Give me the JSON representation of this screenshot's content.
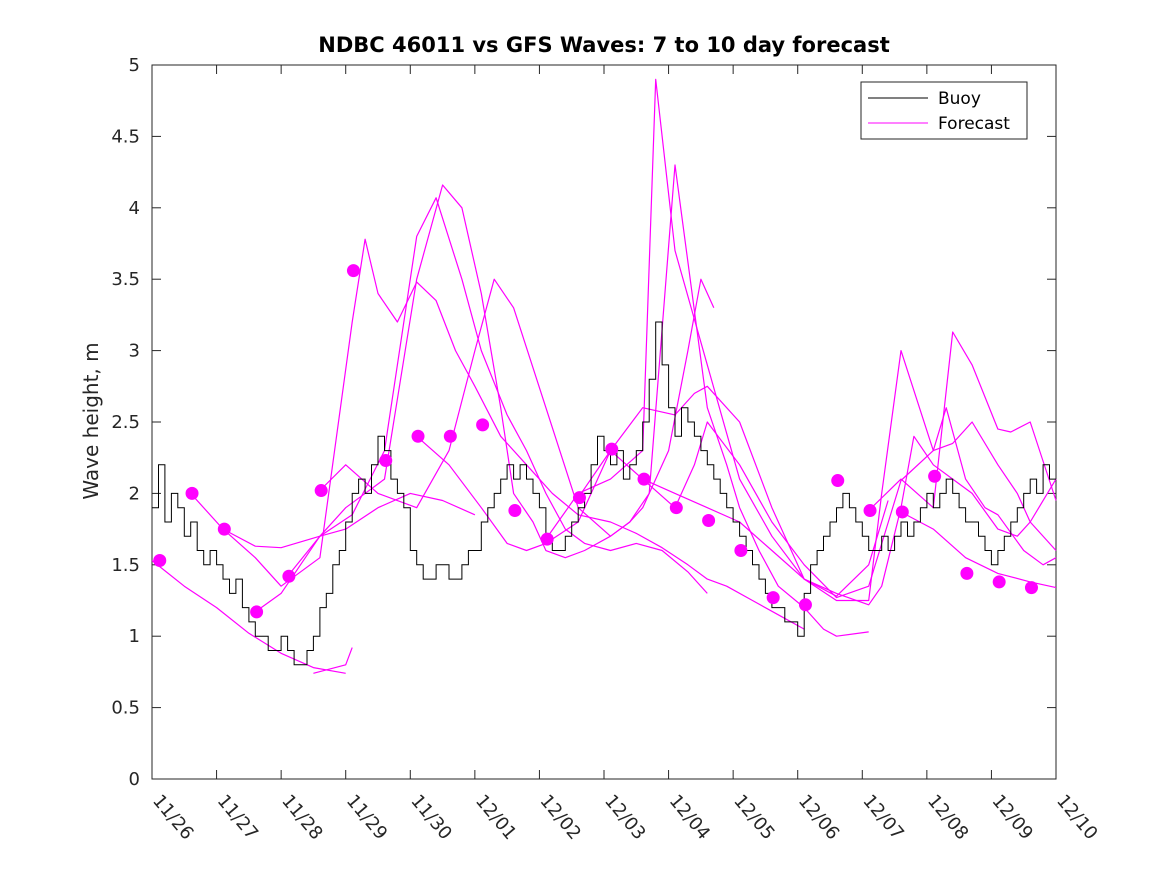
{
  "chart_data": {
    "type": "line",
    "title": "NDBC 46011 vs GFS Waves: 7 to 10 day forecast",
    "xlabel": "",
    "ylabel": "Wave height, m",
    "xlim": [
      0,
      14
    ],
    "ylim": [
      0,
      5
    ],
    "x_tick_labels": [
      "11/26",
      "11/27",
      "11/28",
      "11/29",
      "11/30",
      "12/01",
      "12/02",
      "12/03",
      "12/04",
      "12/05",
      "12/06",
      "12/07",
      "12/08",
      "12/09",
      "12/10"
    ],
    "y_tick_labels": [
      "0",
      "0.5",
      "1",
      "1.5",
      "2",
      "2.5",
      "3",
      "3.5",
      "4",
      "4.5",
      "5"
    ],
    "grid": false,
    "legend": {
      "position": "top-right",
      "entries": [
        "Buoy",
        "Forecast"
      ]
    },
    "colors": {
      "buoy": "#000000",
      "forecast": "#ff00ff",
      "axis": "#262626"
    },
    "buoy": {
      "name": "Buoy",
      "x": [
        0,
        0.1,
        0.2,
        0.3,
        0.4,
        0.5,
        0.6,
        0.7,
        0.8,
        0.9,
        1.0,
        1.1,
        1.2,
        1.3,
        1.4,
        1.5,
        1.6,
        1.7,
        1.8,
        1.9,
        2.0,
        2.1,
        2.2,
        2.3,
        2.4,
        2.5,
        2.6,
        2.7,
        2.8,
        2.9,
        3.0,
        3.1,
        3.2,
        3.3,
        3.4,
        3.5,
        3.6,
        3.7,
        3.8,
        3.9,
        4.0,
        4.1,
        4.2,
        4.3,
        4.4,
        4.5,
        4.6,
        4.7,
        4.8,
        4.9,
        5.0,
        5.1,
        5.2,
        5.3,
        5.4,
        5.5,
        5.6,
        5.7,
        5.8,
        5.9,
        6.0,
        6.1,
        6.2,
        6.3,
        6.4,
        6.5,
        6.6,
        6.7,
        6.8,
        6.9,
        7.0,
        7.1,
        7.2,
        7.3,
        7.4,
        7.5,
        7.6,
        7.7,
        7.8,
        7.9,
        8.0,
        8.1,
        8.2,
        8.3,
        8.4,
        8.5,
        8.6,
        8.7,
        8.8,
        8.9,
        9.0,
        9.1,
        9.2,
        9.3,
        9.4,
        9.5,
        9.6,
        9.7,
        9.8,
        9.9,
        10.0,
        10.1,
        10.2,
        10.3,
        10.4,
        10.5,
        10.6,
        10.7,
        10.8,
        10.9,
        11.0,
        11.1,
        11.2,
        11.3,
        11.4,
        11.5,
        11.6,
        11.7,
        11.8,
        11.9,
        12.0,
        12.1,
        12.2,
        12.3,
        12.4,
        12.5,
        12.6,
        12.7,
        12.8,
        12.9,
        13.0,
        13.1,
        13.2,
        13.3,
        13.4,
        13.5,
        13.6,
        13.7,
        13.8,
        13.9,
        14.0
      ],
      "values": [
        1.9,
        2.2,
        1.8,
        2.0,
        1.9,
        1.7,
        1.8,
        1.6,
        1.5,
        1.6,
        1.5,
        1.4,
        1.3,
        1.4,
        1.2,
        1.1,
        1.0,
        1.0,
        0.9,
        0.9,
        1.0,
        0.9,
        0.8,
        0.8,
        0.9,
        1.0,
        1.2,
        1.3,
        1.5,
        1.6,
        1.8,
        2.0,
        2.1,
        2.0,
        2.2,
        2.4,
        2.3,
        2.1,
        2.0,
        1.9,
        1.6,
        1.5,
        1.4,
        1.4,
        1.5,
        1.5,
        1.4,
        1.4,
        1.5,
        1.6,
        1.6,
        1.8,
        1.9,
        2.0,
        2.1,
        2.2,
        2.1,
        2.2,
        2.1,
        2.0,
        1.9,
        1.7,
        1.6,
        1.6,
        1.7,
        1.8,
        1.9,
        2.0,
        2.2,
        2.4,
        2.3,
        2.2,
        2.3,
        2.1,
        2.2,
        2.3,
        2.5,
        2.8,
        3.2,
        2.9,
        2.6,
        2.4,
        2.6,
        2.5,
        2.4,
        2.3,
        2.2,
        2.1,
        2.0,
        1.9,
        1.8,
        1.7,
        1.6,
        1.5,
        1.4,
        1.3,
        1.2,
        1.2,
        1.1,
        1.1,
        1.0,
        1.3,
        1.5,
        1.6,
        1.7,
        1.8,
        1.9,
        2.0,
        1.9,
        1.8,
        1.7,
        1.6,
        1.6,
        1.7,
        1.6,
        1.7,
        1.8,
        1.7,
        1.8,
        1.9,
        2.0,
        1.9,
        2.0,
        2.1,
        2.0,
        1.9,
        1.8,
        1.8,
        1.7,
        1.6,
        1.5,
        1.6,
        1.7,
        1.8,
        1.9,
        2.0,
        2.1,
        2.0,
        2.2,
        2.1,
        2.1
      ]
    },
    "forecasts": [
      {
        "x": [
          0,
          0.5,
          1,
          1.5,
          2,
          2.5,
          3
        ],
        "values": [
          1.53,
          1.35,
          1.2,
          1.02,
          0.88,
          0.78,
          0.74
        ]
      },
      {
        "x": [
          2.5,
          3,
          3.1
        ],
        "values": [
          0.74,
          0.8,
          0.92
        ]
      },
      {
        "x": [
          0.6,
          1.1,
          1.6,
          2,
          2.6,
          3,
          3.5,
          4,
          4.5,
          5
        ],
        "values": [
          2.0,
          1.75,
          1.63,
          1.62,
          1.7,
          1.75,
          1.9,
          2.0,
          1.95,
          1.85
        ]
      },
      {
        "x": [
          1.1,
          1.6,
          2,
          2.6,
          3.1,
          3.3,
          3.5,
          3.8,
          4.1,
          4.4,
          4.7,
          5,
          5.4,
          5.8,
          6.2,
          6.6,
          7.1,
          7.5,
          7.9,
          8.3,
          8.6,
          8.9,
          9.3,
          9.7,
          10.1
        ],
        "values": [
          1.75,
          1.55,
          1.35,
          1.55,
          3.2,
          3.78,
          3.4,
          3.2,
          3.48,
          3.35,
          3.0,
          2.75,
          2.4,
          2.2,
          2.0,
          1.85,
          1.8,
          1.72,
          1.62,
          1.5,
          1.4,
          1.35,
          1.25,
          1.15,
          1.05
        ]
      },
      {
        "x": [
          1.6,
          2,
          2.6,
          3.1,
          3.6,
          4.1,
          4.4,
          4.8,
          5.1,
          5.5,
          5.8,
          6.1,
          6.4,
          6.7,
          7.1,
          7.5,
          7.9,
          8.3,
          8.6
        ],
        "values": [
          1.17,
          1.3,
          1.7,
          1.85,
          2.3,
          3.8,
          4.07,
          3.5,
          3.0,
          2.55,
          2.3,
          2.0,
          1.75,
          1.65,
          1.6,
          1.65,
          1.6,
          1.45,
          1.3
        ]
      },
      {
        "x": [
          2.1,
          2.6,
          3,
          3.6,
          4.1,
          4.5,
          4.8,
          5.1,
          5.4,
          5.6,
          5.9,
          6.1,
          6.4,
          6.7,
          7.1,
          7.4,
          7.6,
          8,
          8.3,
          8.5,
          8.7
        ],
        "values": [
          1.42,
          1.7,
          1.9,
          2.1,
          3.5,
          4.16,
          4.0,
          3.4,
          2.6,
          2.0,
          1.8,
          1.6,
          1.55,
          1.6,
          1.7,
          1.8,
          1.9,
          2.3,
          3.0,
          3.5,
          3.3
        ]
      },
      {
        "x": [
          2.6,
          3,
          3.5,
          4.1,
          4.6,
          5,
          5.3,
          5.6,
          6.1,
          6.6,
          7.1,
          7.4,
          7.7,
          8.1,
          8.6,
          8.9,
          9.1,
          9.4,
          9.7,
          10.1,
          10.4,
          10.6,
          11.1
        ],
        "values": [
          2.02,
          2.2,
          2.0,
          1.9,
          2.3,
          3.0,
          3.5,
          3.3,
          2.6,
          1.9,
          1.7,
          1.8,
          2.0,
          4.3,
          2.6,
          2.2,
          1.9,
          1.6,
          1.35,
          1.2,
          1.05,
          1.0,
          1.03
        ]
      },
      {
        "x": [
          4.1,
          4.6,
          5.1,
          5.5,
          5.8,
          6.1,
          6.6,
          7.1,
          7.6,
          8.1,
          8.4,
          8.6,
          9.1,
          9.6,
          10.1,
          10.6,
          11.1,
          11.4
        ],
        "values": [
          2.4,
          2.2,
          1.9,
          1.65,
          1.6,
          1.65,
          1.8,
          2.3,
          2.6,
          2.55,
          2.7,
          2.75,
          2.5,
          1.9,
          1.4,
          1.28,
          1.5,
          1.95
        ]
      },
      {
        "x": [
          6.1,
          6.6,
          7.1,
          7.6,
          7.8,
          8.1,
          8.6,
          9.1,
          9.6,
          10.1,
          10.6,
          11.1,
          11.3,
          11.6,
          12.1,
          12.4,
          12.7,
          13.1,
          13.4,
          13.6,
          14
        ],
        "values": [
          1.68,
          2.0,
          2.1,
          2.3,
          4.9,
          3.7,
          2.9,
          2.1,
          1.7,
          1.4,
          1.25,
          1.25,
          2.0,
          3.0,
          2.3,
          2.35,
          2.5,
          2.2,
          2.0,
          1.8,
          1.6
        ]
      },
      {
        "x": [
          6.6,
          7.1,
          7.6,
          8.1,
          8.6,
          9.1,
          9.6,
          10.1,
          10.6,
          11.1,
          11.3,
          11.6,
          11.8,
          12.1,
          12.4,
          12.7,
          13.1,
          13.4,
          13.6,
          14
        ],
        "values": [
          1.97,
          2.3,
          2.1,
          2.0,
          1.9,
          1.8,
          1.6,
          1.4,
          1.3,
          1.22,
          1.35,
          1.9,
          2.4,
          2.2,
          2.1,
          2.0,
          1.75,
          1.7,
          1.8,
          2.1
        ]
      },
      {
        "x": [
          7.6,
          8.1,
          8.4,
          8.6,
          9.1,
          9.6,
          10.1,
          10.6,
          11.1,
          11.6,
          12.1,
          12.3,
          12.6,
          12.9,
          13.1,
          13.5,
          13.8,
          14
        ],
        "values": [
          2.1,
          1.9,
          2.2,
          2.5,
          2.2,
          1.8,
          1.5,
          1.27,
          1.35,
          2.09,
          2.3,
          2.6,
          2.1,
          1.9,
          1.85,
          1.6,
          1.5,
          1.55
        ]
      },
      {
        "x": [
          11.1,
          11.6,
          12.1,
          12.4,
          12.7,
          13.1,
          13.3,
          13.6,
          14
        ],
        "values": [
          1.88,
          2.1,
          1.9,
          3.13,
          2.9,
          2.45,
          2.43,
          2.5,
          1.95
        ]
      },
      {
        "x": [
          11.6,
          12.1,
          12.6,
          13.1,
          13.6,
          14
        ],
        "values": [
          1.87,
          1.75,
          1.55,
          1.44,
          1.38,
          1.34
        ]
      }
    ],
    "forecast_markers": {
      "x": [
        0.12,
        0.62,
        1.12,
        1.62,
        2.12,
        2.62,
        3.12,
        3.62,
        4.12,
        4.62,
        5.12,
        5.62,
        6.12,
        6.62,
        7.12,
        7.62,
        8.12,
        8.62,
        9.12,
        9.62,
        10.12,
        10.62,
        11.12,
        11.62,
        12.12,
        12.62,
        13.12,
        13.62
      ],
      "values": [
        1.53,
        2.0,
        1.75,
        1.17,
        1.42,
        2.02,
        3.56,
        2.23,
        2.4,
        2.4,
        2.48,
        1.88,
        1.68,
        1.97,
        2.31,
        2.1,
        1.9,
        1.81,
        1.6,
        1.27,
        1.22,
        2.09,
        1.88,
        1.87,
        2.12,
        1.44,
        1.38,
        1.34
      ]
    }
  }
}
